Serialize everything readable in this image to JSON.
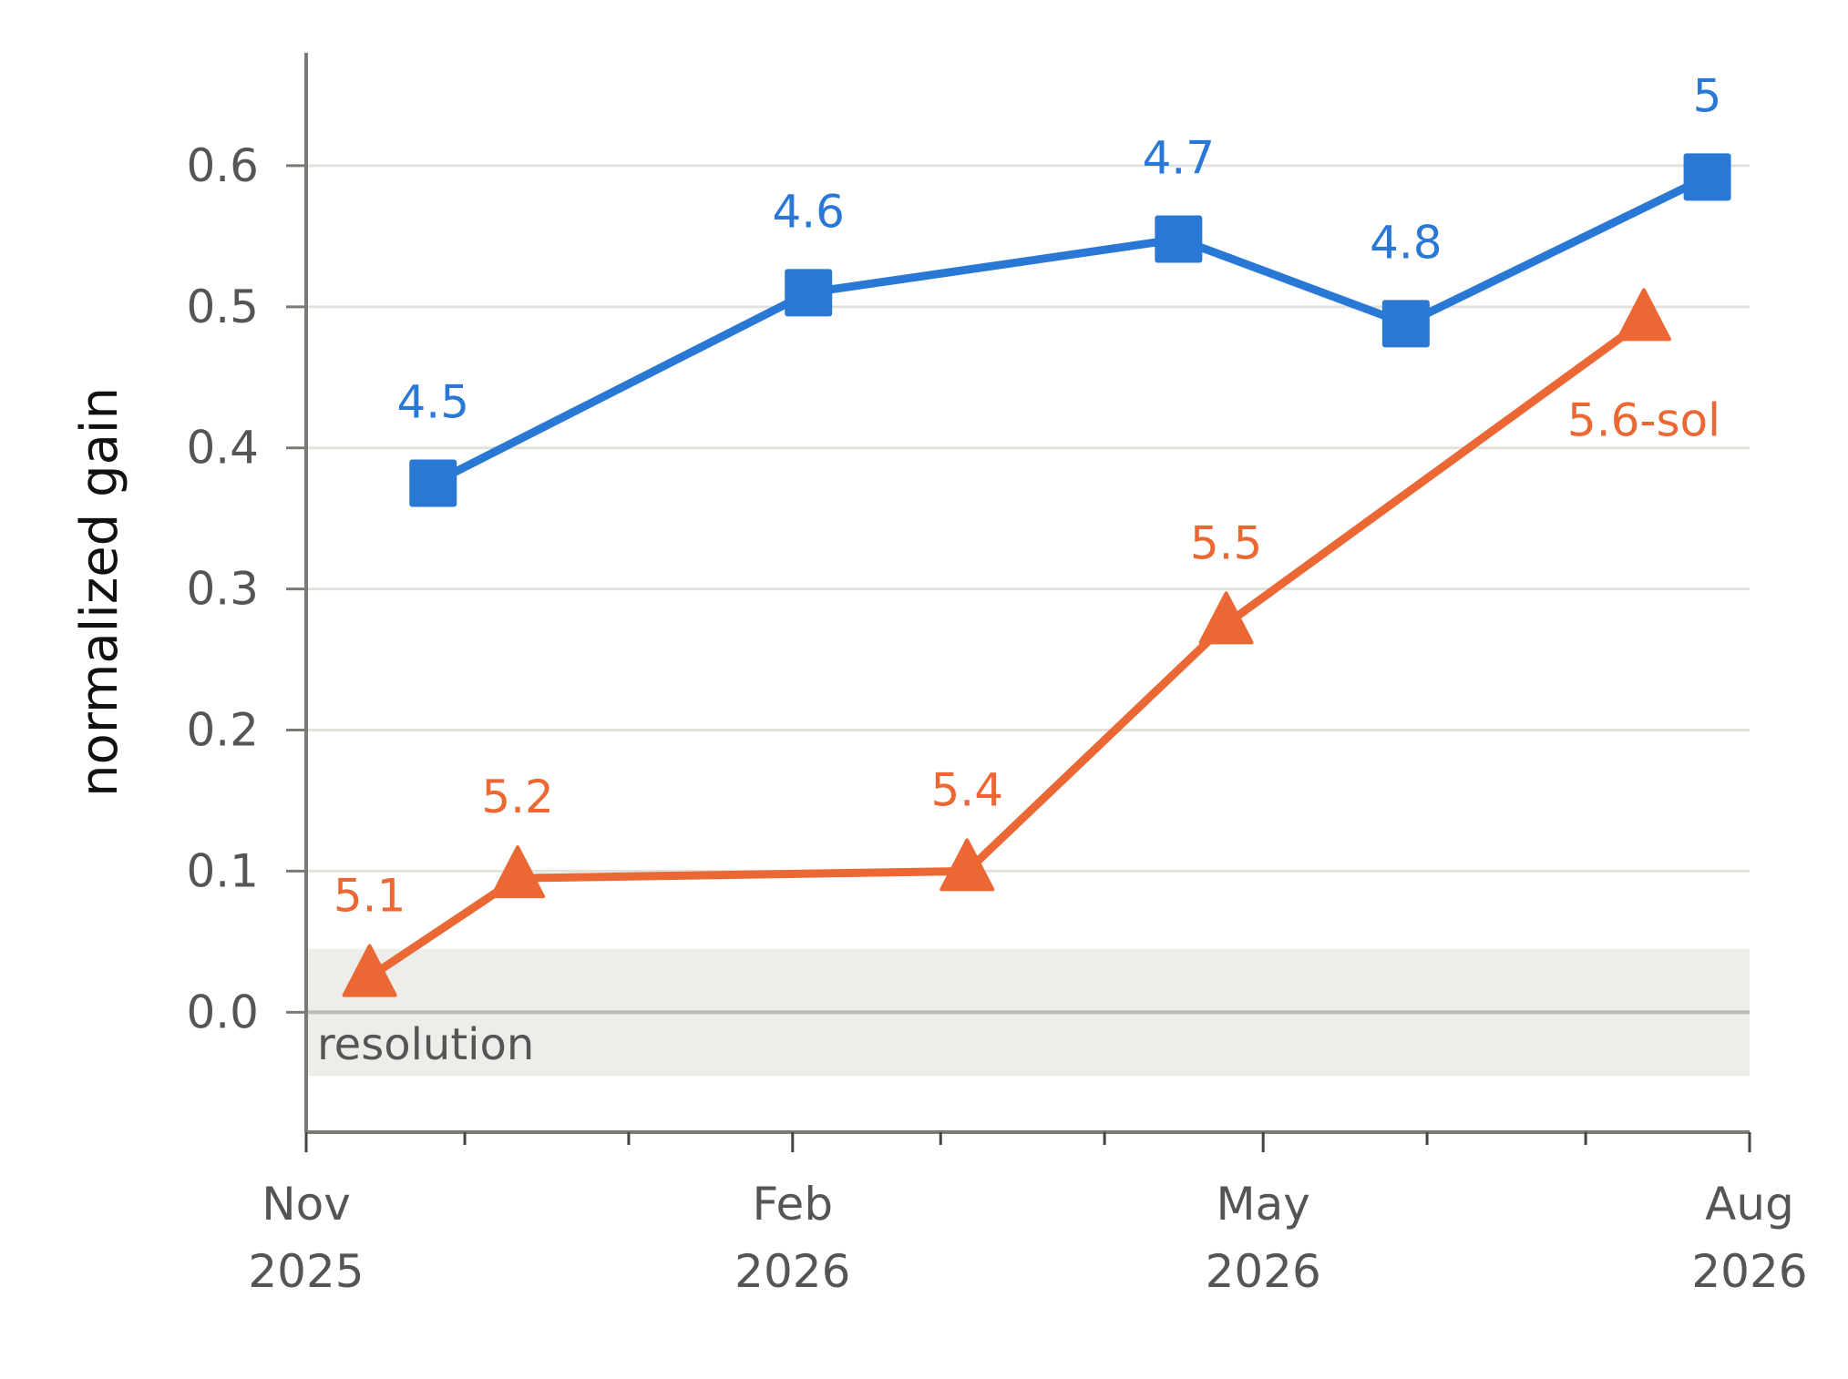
{
  "chart_data": {
    "type": "line",
    "title": "",
    "xlabel": "",
    "ylabel": "normalized gain",
    "ylim": [
      -0.085,
      0.68
    ],
    "xlim": [
      "2025-11-01",
      "2026-08-01"
    ],
    "yticks": [
      0.0,
      0.1,
      0.2,
      0.3,
      0.4,
      0.5,
      0.6
    ],
    "ytick_labels": [
      "0.0",
      "0.1",
      "0.2",
      "0.3",
      "0.4",
      "0.5",
      "0.6"
    ],
    "xticks": [
      {
        "date": "2025-11-01",
        "line1": "Nov",
        "line2": "2025"
      },
      {
        "date": "2026-02-01",
        "line1": "Feb",
        "line2": "2026"
      },
      {
        "date": "2026-05-01",
        "line1": "May",
        "line2": "2026"
      },
      {
        "date": "2026-08-01",
        "line1": "Aug",
        "line2": "2026"
      }
    ],
    "minor_xticks": [
      "2025-12-01",
      "2026-01-01",
      "2026-03-01",
      "2026-04-01",
      "2026-06-01",
      "2026-07-01"
    ],
    "grid": "horizontal",
    "legend": "none",
    "band": {
      "from": -0.045,
      "to": 0.045,
      "label": "resolution"
    },
    "series": [
      {
        "color": "#2a78d6",
        "marker": "square",
        "points": [
          {
            "x": "2025-11-25",
            "y": 0.375,
            "label": "4.5"
          },
          {
            "x": "2026-02-04",
            "y": 0.51,
            "label": "4.6"
          },
          {
            "x": "2026-04-15",
            "y": 0.548,
            "label": "4.7"
          },
          {
            "x": "2026-05-28",
            "y": 0.488,
            "label": "4.8"
          },
          {
            "x": "2026-07-24",
            "y": 0.592,
            "label": "5"
          }
        ]
      },
      {
        "color": "#eb6834",
        "marker": "triangle",
        "points": [
          {
            "x": "2025-11-13",
            "y": 0.025,
            "label": "5.1"
          },
          {
            "x": "2025-12-11",
            "y": 0.095,
            "label": "5.2"
          },
          {
            "x": "2026-03-06",
            "y": 0.1,
            "label": "5.4"
          },
          {
            "x": "2026-04-24",
            "y": 0.275,
            "label": "5.5"
          },
          {
            "x": "2026-07-12",
            "y": 0.49,
            "label": "5.6-sol"
          }
        ]
      }
    ]
  }
}
